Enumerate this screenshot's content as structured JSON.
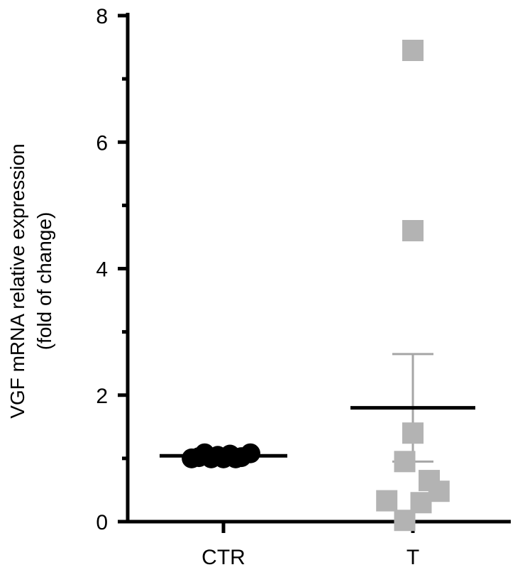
{
  "chart_data": {
    "type": "scatter",
    "ylabel_line1": "VGF mRNA relative expression",
    "ylabel_line2": "(fold of change)",
    "xlabel": "",
    "categories": [
      "CTR",
      "T"
    ],
    "ylim": [
      0,
      8
    ],
    "yticks": [
      "0",
      "2",
      "4",
      "6",
      "8"
    ],
    "series": [
      {
        "category": "CTR",
        "marker": "circle",
        "color": "#000000",
        "points": [
          {
            "x": -0.39,
            "y": 1.0
          },
          {
            "x": -0.3,
            "y": 1.02
          },
          {
            "x": -0.23,
            "y": 1.08
          },
          {
            "x": -0.15,
            "y": 1.0
          },
          {
            "x": -0.07,
            "y": 1.04
          },
          {
            "x": 0.0,
            "y": 1.0
          },
          {
            "x": 0.08,
            "y": 1.06
          },
          {
            "x": 0.15,
            "y": 1.0
          },
          {
            "x": 0.22,
            "y": 1.02
          },
          {
            "x": 0.33,
            "y": 1.08
          }
        ],
        "mean": 1.04
      },
      {
        "category": "T",
        "marker": "square",
        "color": "#b3b3b3",
        "points": [
          {
            "x": 0.0,
            "y": 7.45
          },
          {
            "x": 0.0,
            "y": 4.6
          },
          {
            "x": 0.0,
            "y": 1.4
          },
          {
            "x": -0.1,
            "y": 0.95
          },
          {
            "x": 0.2,
            "y": 0.65
          },
          {
            "x": 0.32,
            "y": 0.48
          },
          {
            "x": -0.32,
            "y": 0.33
          },
          {
            "x": 0.1,
            "y": 0.3
          },
          {
            "x": -0.1,
            "y": 0.02
          }
        ],
        "mean": 1.8,
        "error_upper": 2.65,
        "error_lower": 0.95,
        "error_color": "#a6a6a6"
      }
    ]
  }
}
